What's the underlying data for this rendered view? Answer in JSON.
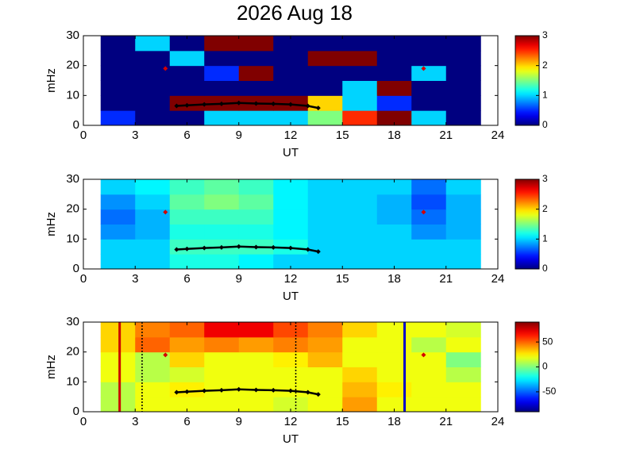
{
  "chart_data": [
    {
      "type": "heatmap",
      "title": "2026 Aug 18",
      "xlabel": "UT",
      "ylabel": "mHz",
      "xlim": [
        0,
        24
      ],
      "xticks": [
        0,
        3,
        6,
        9,
        12,
        15,
        18,
        21,
        24
      ],
      "ylim": [
        0,
        30
      ],
      "yticks": [
        0,
        10,
        20,
        30
      ],
      "clim": [
        0,
        3
      ],
      "cticks": [
        0,
        1,
        2,
        3
      ],
      "x": [
        1,
        3,
        5,
        7,
        9,
        11,
        13,
        15,
        17,
        19,
        21,
        23
      ],
      "y": [
        0,
        5,
        10,
        15,
        20,
        25,
        30
      ],
      "z": [
        [
          0.5,
          0,
          0,
          1,
          1,
          1,
          1.5,
          2.5,
          3,
          1,
          0
        ],
        [
          0,
          0,
          3,
          3,
          3,
          3,
          2,
          1,
          0.5,
          0,
          0
        ],
        [
          0,
          0,
          0,
          0,
          0,
          0,
          0,
          1,
          3,
          0,
          0
        ],
        [
          0,
          0,
          0,
          0.5,
          3,
          0,
          0,
          0,
          0,
          1,
          0
        ],
        [
          0,
          0,
          1,
          0,
          0,
          0,
          3,
          3,
          0,
          0,
          0
        ],
        [
          0,
          1,
          0,
          3,
          3,
          0,
          0,
          0,
          0,
          0,
          0
        ]
      ],
      "trace": {
        "x": [
          5.4,
          6,
          7,
          8,
          9,
          10,
          11,
          12,
          13,
          13.6
        ],
        "y": [
          6.5,
          6.7,
          7,
          7.2,
          7.5,
          7.3,
          7.2,
          7,
          6.5,
          5.8
        ]
      },
      "points": {
        "x": [
          4.75,
          19.7
        ],
        "y": [
          19,
          19
        ],
        "color": "#d40000"
      }
    },
    {
      "type": "heatmap",
      "xlabel": "UT",
      "ylabel": "mHz",
      "xlim": [
        0,
        24
      ],
      "xticks": [
        0,
        3,
        6,
        9,
        12,
        15,
        18,
        21,
        24
      ],
      "ylim": [
        0,
        30
      ],
      "yticks": [
        0,
        10,
        20,
        30
      ],
      "clim": [
        0,
        3
      ],
      "cticks": [
        0,
        1,
        2,
        3
      ],
      "x": [
        1,
        3,
        5,
        7,
        9,
        11,
        13,
        15,
        17,
        19,
        21,
        23
      ],
      "y": [
        0,
        5,
        10,
        15,
        20,
        25,
        30
      ],
      "z": [
        [
          1,
          1,
          1.2,
          1.2,
          1.1,
          1,
          1,
          1,
          1,
          1,
          1
        ],
        [
          1,
          1,
          1.3,
          1.3,
          1.3,
          1.2,
          1,
          1,
          1,
          1,
          1
        ],
        [
          0.8,
          0.9,
          1.2,
          1.2,
          1.2,
          1.1,
          1,
          1,
          1,
          0.8,
          0.9
        ],
        [
          0.7,
          0.9,
          1.3,
          1.3,
          1.3,
          1.1,
          1,
          1,
          0.9,
          0.7,
          0.9
        ],
        [
          0.8,
          1,
          1.4,
          1.5,
          1.4,
          1.1,
          1,
          1,
          0.9,
          0.6,
          0.9
        ],
        [
          1,
          1.1,
          1.3,
          1.4,
          1.3,
          1.1,
          1,
          1,
          1,
          0.7,
          1
        ]
      ],
      "trace": {
        "x": [
          5.4,
          6,
          7,
          8,
          9,
          10,
          11,
          12,
          13,
          13.6
        ],
        "y": [
          6.5,
          6.7,
          7,
          7.2,
          7.5,
          7.3,
          7.2,
          7,
          6.5,
          5.8
        ]
      },
      "points": {
        "x": [
          4.75,
          19.7
        ],
        "y": [
          19,
          19
        ],
        "color": "#d40000"
      }
    },
    {
      "type": "heatmap",
      "xlabel": "UT",
      "ylabel": "mHz",
      "xlim": [
        0,
        24
      ],
      "xticks": [
        0,
        3,
        6,
        9,
        12,
        15,
        18,
        21,
        24
      ],
      "ylim": [
        0,
        30
      ],
      "yticks": [
        0,
        10,
        20,
        30
      ],
      "clim": [
        -90,
        90
      ],
      "cticks": [
        -50,
        0,
        50
      ],
      "x": [
        1,
        3,
        5,
        7,
        9,
        11,
        13,
        15,
        17,
        19,
        21,
        23
      ],
      "y": [
        0,
        5,
        10,
        15,
        20,
        25,
        30
      ],
      "z": [
        [
          10,
          20,
          20,
          20,
          20,
          15,
          20,
          40,
          20,
          20,
          20
        ],
        [
          10,
          20,
          25,
          20,
          20,
          20,
          20,
          35,
          25,
          20,
          20
        ],
        [
          20,
          10,
          15,
          20,
          20,
          20,
          20,
          30,
          20,
          20,
          10
        ],
        [
          20,
          10,
          30,
          20,
          20,
          25,
          35,
          20,
          20,
          20,
          0
        ],
        [
          30,
          50,
          40,
          45,
          40,
          45,
          40,
          20,
          20,
          10,
          20
        ],
        [
          30,
          45,
          50,
          70,
          70,
          55,
          45,
          30,
          20,
          20,
          15
        ]
      ],
      "trace": {
        "x": [
          5.4,
          6,
          7,
          8,
          9,
          10,
          11,
          12,
          13,
          13.6
        ],
        "y": [
          6.5,
          6.7,
          7,
          7.2,
          7.5,
          7.3,
          7.2,
          7,
          6.5,
          5.8
        ]
      },
      "points": {
        "x": [
          4.75,
          19.7
        ],
        "y": [
          19,
          19
        ],
        "color": "#d40000"
      },
      "vlines": [
        {
          "x": 2.1,
          "color": "#cc0000",
          "style": "solid"
        },
        {
          "x": 3.4,
          "color": "#000000",
          "style": "dotted"
        },
        {
          "x": 12.3,
          "color": "#000000",
          "style": "dotted"
        },
        {
          "x": 18.6,
          "color": "#0000cc",
          "style": "solid"
        }
      ]
    }
  ]
}
